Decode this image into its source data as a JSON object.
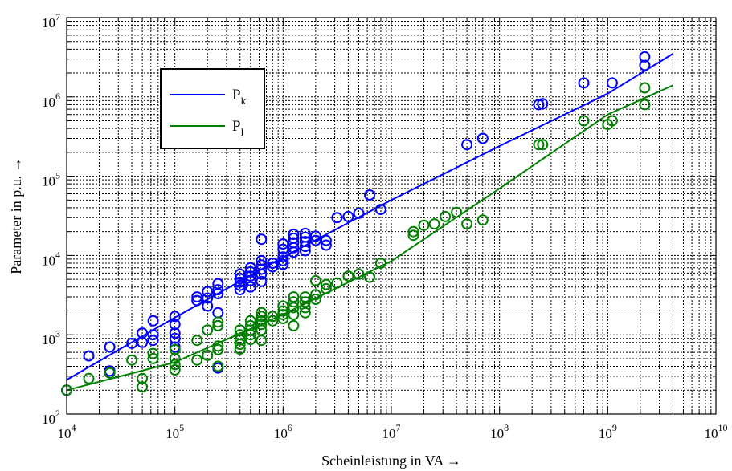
{
  "chart_data": {
    "type": "scatter",
    "xscale": "log",
    "yscale": "log",
    "xlim": [
      10000,
      10000000000
    ],
    "ylim": [
      100,
      10000000
    ],
    "grid": true,
    "legend_position": "top-left",
    "xlabel": "Scheinleistung in VA  →",
    "ylabel": "Parameter in p.u.  →",
    "x_ticks": [
      {
        "value": 10000,
        "base": "10",
        "exp": "4"
      },
      {
        "value": 100000,
        "base": "10",
        "exp": "5"
      },
      {
        "value": 1000000,
        "base": "10",
        "exp": "6"
      },
      {
        "value": 10000000,
        "base": "10",
        "exp": "7"
      },
      {
        "value": 100000000,
        "base": "10",
        "exp": "8"
      },
      {
        "value": 1000000000,
        "base": "10",
        "exp": "9"
      },
      {
        "value": 10000000000,
        "base": "10",
        "exp": "10"
      }
    ],
    "y_ticks": [
      {
        "value": 100,
        "base": "10",
        "exp": "2"
      },
      {
        "value": 1000,
        "base": "10",
        "exp": "3"
      },
      {
        "value": 10000,
        "base": "10",
        "exp": "4"
      },
      {
        "value": 100000,
        "base": "10",
        "exp": "5"
      },
      {
        "value": 1000000,
        "base": "10",
        "exp": "6"
      },
      {
        "value": 10000000,
        "base": "10",
        "exp": "7"
      }
    ],
    "series": [
      {
        "name": "P",
        "subscript": "k",
        "color": "#0000ff",
        "fit_curve": [
          [
            10000,
            270
          ],
          [
            100000,
            1650
          ],
          [
            1000000,
            9500
          ],
          [
            10000000,
            50000
          ],
          [
            100000000,
            240000
          ],
          [
            1000000000,
            1100000
          ],
          [
            4000000000,
            3500000
          ]
        ],
        "points": [
          [
            10000,
            200
          ],
          [
            16000,
            540
          ],
          [
            25000,
            700
          ],
          [
            25000,
            350
          ],
          [
            40000,
            780
          ],
          [
            50000,
            1050
          ],
          [
            50000,
            800
          ],
          [
            63000,
            1500
          ],
          [
            63000,
            1000
          ],
          [
            63000,
            850
          ],
          [
            100000,
            1700
          ],
          [
            100000,
            1350
          ],
          [
            100000,
            1050
          ],
          [
            100000,
            900
          ],
          [
            100000,
            700
          ],
          [
            160000,
            3000
          ],
          [
            160000,
            2700
          ],
          [
            200000,
            3500
          ],
          [
            200000,
            2900
          ],
          [
            200000,
            2300
          ],
          [
            250000,
            4400
          ],
          [
            250000,
            3700
          ],
          [
            250000,
            3300
          ],
          [
            250000,
            1900
          ],
          [
            250000,
            380
          ],
          [
            400000,
            5800
          ],
          [
            400000,
            5100
          ],
          [
            400000,
            4600
          ],
          [
            400000,
            4200
          ],
          [
            400000,
            3700
          ],
          [
            500000,
            7000
          ],
          [
            500000,
            6200
          ],
          [
            500000,
            5500
          ],
          [
            500000,
            4800
          ],
          [
            500000,
            4000
          ],
          [
            630000,
            16000
          ],
          [
            630000,
            8600
          ],
          [
            630000,
            7600
          ],
          [
            630000,
            6700
          ],
          [
            630000,
            5800
          ],
          [
            630000,
            4700
          ],
          [
            800000,
            8000
          ],
          [
            800000,
            7200
          ],
          [
            1000000,
            9600
          ],
          [
            1000000,
            8600
          ],
          [
            1000000,
            7700
          ],
          [
            1000000,
            14000
          ],
          [
            1000000,
            12000
          ],
          [
            1250000,
            18500
          ],
          [
            1250000,
            16500
          ],
          [
            1250000,
            14500
          ],
          [
            1250000,
            12500
          ],
          [
            1250000,
            11000
          ],
          [
            1600000,
            19000
          ],
          [
            1600000,
            17000
          ],
          [
            1600000,
            15000
          ],
          [
            1600000,
            13000
          ],
          [
            1600000,
            11500
          ],
          [
            2000000,
            17500
          ],
          [
            2000000,
            15500
          ],
          [
            2500000,
            15500
          ],
          [
            2500000,
            13500
          ],
          [
            3150000,
            30000
          ],
          [
            4000000,
            31000
          ],
          [
            5000000,
            34000
          ],
          [
            6300000,
            58000
          ],
          [
            8000000,
            38000
          ],
          [
            50000000,
            250000
          ],
          [
            70000000,
            300000
          ],
          [
            230000000,
            800000
          ],
          [
            250000000,
            820000
          ],
          [
            600000000,
            1500000
          ],
          [
            1100000000,
            1500000
          ],
          [
            2200000000,
            3200000
          ],
          [
            2200000000,
            2500000
          ]
        ]
      },
      {
        "name": "P",
        "subscript": "l",
        "color": "#008000",
        "fit_curve": [
          [
            10000,
            200
          ],
          [
            100000,
            450
          ],
          [
            1000000,
            1800
          ],
          [
            10000000,
            8500
          ],
          [
            100000000,
            70000
          ],
          [
            1000000000,
            600000
          ],
          [
            4000000000,
            1400000
          ]
        ],
        "points": [
          [
            10000,
            200
          ],
          [
            16000,
            280
          ],
          [
            25000,
            330
          ],
          [
            40000,
            480
          ],
          [
            50000,
            280
          ],
          [
            50000,
            220
          ],
          [
            63000,
            580
          ],
          [
            63000,
            500
          ],
          [
            100000,
            650
          ],
          [
            100000,
            500
          ],
          [
            100000,
            420
          ],
          [
            100000,
            360
          ],
          [
            160000,
            850
          ],
          [
            160000,
            480
          ],
          [
            200000,
            1150
          ],
          [
            200000,
            550
          ],
          [
            250000,
            1450
          ],
          [
            250000,
            1300
          ],
          [
            250000,
            720
          ],
          [
            250000,
            650
          ],
          [
            250000,
            400
          ],
          [
            400000,
            1150
          ],
          [
            400000,
            1000
          ],
          [
            400000,
            860
          ],
          [
            400000,
            760
          ],
          [
            400000,
            660
          ],
          [
            500000,
            1500
          ],
          [
            500000,
            1300
          ],
          [
            500000,
            1150
          ],
          [
            500000,
            1000
          ],
          [
            500000,
            870
          ],
          [
            630000,
            1900
          ],
          [
            630000,
            1700
          ],
          [
            630000,
            1500
          ],
          [
            630000,
            1350
          ],
          [
            630000,
            1150
          ],
          [
            630000,
            850
          ],
          [
            800000,
            1700
          ],
          [
            800000,
            1500
          ],
          [
            1000000,
            2300
          ],
          [
            1000000,
            2000
          ],
          [
            1000000,
            1800
          ],
          [
            1000000,
            1600
          ],
          [
            1250000,
            3000
          ],
          [
            1250000,
            2600
          ],
          [
            1250000,
            2200
          ],
          [
            1250000,
            1800
          ],
          [
            1250000,
            1300
          ],
          [
            1600000,
            3000
          ],
          [
            1600000,
            2600
          ],
          [
            1600000,
            2200
          ],
          [
            1600000,
            1900
          ],
          [
            2000000,
            4800
          ],
          [
            2000000,
            3200
          ],
          [
            2000000,
            2800
          ],
          [
            2500000,
            4300
          ],
          [
            2500000,
            3800
          ],
          [
            3150000,
            4500
          ],
          [
            4000000,
            5500
          ],
          [
            5000000,
            5800
          ],
          [
            6300000,
            5300
          ],
          [
            8000000,
            8000
          ],
          [
            16000000,
            18000
          ],
          [
            16000000,
            20000
          ],
          [
            20000000,
            24000
          ],
          [
            25000000,
            25000
          ],
          [
            31500000,
            31000
          ],
          [
            40000000,
            35000
          ],
          [
            50000000,
            25000
          ],
          [
            70000000,
            28000
          ],
          [
            230000000,
            250000
          ],
          [
            250000000,
            250000
          ],
          [
            600000000,
            500000
          ],
          [
            1000000000,
            450000
          ],
          [
            1100000000,
            500000
          ],
          [
            2200000000,
            1300000
          ],
          [
            2200000000,
            800000
          ]
        ]
      }
    ]
  }
}
